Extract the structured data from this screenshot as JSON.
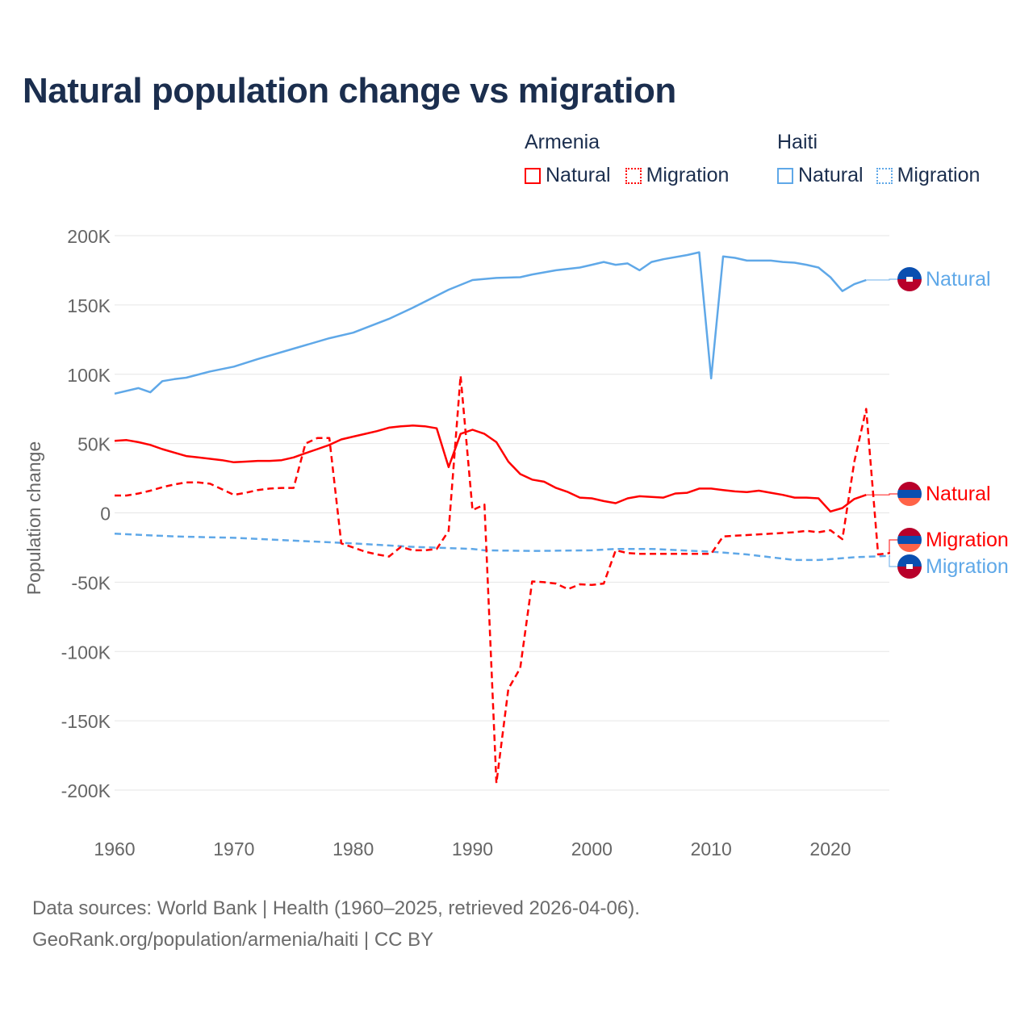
{
  "title": "Natural population change vs migration",
  "legend": [
    {
      "group": "Armenia",
      "items": [
        {
          "label": "Natural",
          "color": "#ff0000",
          "style": "solid"
        },
        {
          "label": "Migration",
          "color": "#ff0000",
          "style": "dotted"
        }
      ]
    },
    {
      "group": "Haiti",
      "items": [
        {
          "label": "Natural",
          "color": "#5fa8e8",
          "style": "solid"
        },
        {
          "label": "Migration",
          "color": "#5fa8e8",
          "style": "dotted"
        }
      ]
    }
  ],
  "footer": {
    "line1": "Data sources: World Bank | Health (1960–2025, retrieved 2026-04-06).",
    "line2": "GeoRank.org/population/armenia/haiti | CC BY"
  },
  "chart_data": {
    "type": "line",
    "title": "Natural population change vs migration",
    "xlabel": "",
    "ylabel": "Population change",
    "xlim": [
      1960,
      2025
    ],
    "ylim": [
      -200000,
      200000
    ],
    "xticks": [
      1960,
      1970,
      1980,
      1990,
      2000,
      2010,
      2020
    ],
    "xtick_labels": [
      "1960",
      "1970",
      "1980",
      "1990",
      "2000",
      "2010",
      "2020"
    ],
    "yticks": [
      200000,
      150000,
      100000,
      50000,
      0,
      -50000,
      -100000,
      -150000,
      -200000
    ],
    "ytick_labels": [
      "200K",
      "150K",
      "100K",
      "50K",
      "0",
      "-50K",
      "-100K",
      "-150K",
      "-200K"
    ],
    "grid": true,
    "legend_position": "top-right",
    "series": [
      {
        "name": "Haiti Natural",
        "end_label": "Natural",
        "country": "Haiti",
        "color": "#5fa8e8",
        "dashed": false,
        "x": [
          1960,
          1962,
          1963,
          1964,
          1965,
          1966,
          1968,
          1970,
          1972,
          1975,
          1978,
          1980,
          1983,
          1985,
          1988,
          1990,
          1992,
          1994,
          1995,
          1997,
          1999,
          2000,
          2001,
          2002,
          2003,
          2004,
          2005,
          2006,
          2008,
          2009,
          2010,
          2011,
          2012,
          2013,
          2015,
          2016,
          2017,
          2018,
          2019,
          2020,
          2021,
          2022,
          2023
        ],
        "y": [
          86000,
          90000,
          87000,
          95000,
          96500,
          97500,
          102000,
          105500,
          111000,
          118500,
          126000,
          130000,
          140000,
          148000,
          161000,
          168000,
          169500,
          170000,
          172000,
          175000,
          177000,
          179000,
          181000,
          179000,
          180000,
          175000,
          181000,
          183000,
          186000,
          188000,
          97000,
          185000,
          184000,
          182000,
          182000,
          181000,
          180500,
          179000,
          177000,
          170000,
          160000,
          165000,
          168000
        ]
      },
      {
        "name": "Haiti Migration",
        "end_label": "Migration",
        "country": "Haiti",
        "color": "#5fa8e8",
        "dashed": true,
        "x": [
          1960,
          1965,
          1970,
          1975,
          1980,
          1985,
          1990,
          1991,
          1995,
          2000,
          2002,
          2005,
          2010,
          2013,
          2015,
          2017,
          2019,
          2022,
          2025
        ],
        "y": [
          -15000,
          -17000,
          -18000,
          -20000,
          -22000,
          -24500,
          -26000,
          -27000,
          -27500,
          -27000,
          -26000,
          -26000,
          -28000,
          -30000,
          -32000,
          -34000,
          -34000,
          -32000,
          -31000
        ]
      },
      {
        "name": "Armenia Natural",
        "end_label": "Natural",
        "country": "Armenia",
        "color": "#ff0000",
        "dashed": false,
        "x": [
          1960,
          1961,
          1962,
          1963,
          1964,
          1965,
          1966,
          1967,
          1968,
          1969,
          1970,
          1971,
          1972,
          1973,
          1974,
          1975,
          1976,
          1977,
          1978,
          1979,
          1980,
          1981,
          1982,
          1983,
          1984,
          1985,
          1986,
          1987,
          1988,
          1989,
          1990,
          1991,
          1992,
          1993,
          1994,
          1995,
          1996,
          1997,
          1998,
          1999,
          2000,
          2001,
          2002,
          2003,
          2004,
          2005,
          2006,
          2007,
          2008,
          2009,
          2010,
          2011,
          2012,
          2013,
          2014,
          2015,
          2016,
          2017,
          2018,
          2019,
          2020,
          2021,
          2022,
          2023
        ],
        "y": [
          52000,
          52500,
          51000,
          49000,
          46000,
          43500,
          41000,
          40000,
          39000,
          38000,
          36500,
          37000,
          37500,
          37500,
          38000,
          40000,
          43000,
          46000,
          49000,
          53000,
          55000,
          57000,
          59000,
          61500,
          62500,
          63000,
          62500,
          61000,
          33000,
          57000,
          60000,
          57000,
          51000,
          37000,
          28000,
          24000,
          22500,
          18000,
          15000,
          11000,
          10500,
          8500,
          7000,
          10500,
          12000,
          11500,
          11000,
          14000,
          14500,
          17500,
          17500,
          16500,
          15500,
          15000,
          16000,
          14500,
          13000,
          11000,
          11000,
          10500,
          1000,
          3500,
          10000,
          13000
        ]
      },
      {
        "name": "Armenia Migration",
        "end_label": "Migration",
        "country": "Armenia",
        "color": "#ff0000",
        "dashed": true,
        "x": [
          1960,
          1961,
          1962,
          1963,
          1964,
          1965,
          1966,
          1967,
          1968,
          1969,
          1970,
          1971,
          1972,
          1973,
          1974,
          1975,
          1976,
          1977,
          1978,
          1979,
          1980,
          1981,
          1982,
          1983,
          1984,
          1985,
          1986,
          1987,
          1988,
          1989,
          1990,
          1991,
          1992,
          1993,
          1994,
          1995,
          1996,
          1997,
          1998,
          1999,
          2000,
          2001,
          2002,
          2003,
          2004,
          2005,
          2006,
          2007,
          2008,
          2009,
          2010,
          2011,
          2012,
          2013,
          2014,
          2015,
          2016,
          2017,
          2018,
          2019,
          2020,
          2021,
          2022,
          2023,
          2024,
          2025
        ],
        "y": [
          12500,
          12500,
          14000,
          16000,
          18500,
          20500,
          22000,
          22000,
          21000,
          17000,
          13000,
          14500,
          16500,
          17500,
          18000,
          18000,
          50000,
          54000,
          54000,
          -22000,
          -25000,
          -28000,
          -30000,
          -31500,
          -24500,
          -27000,
          -27000,
          -26000,
          -13000,
          99000,
          2000,
          6000,
          -195000,
          -127000,
          -112000,
          -49500,
          -50000,
          -51000,
          -55000,
          -51500,
          -52000,
          -51000,
          -27000,
          -29000,
          -29500,
          -29500,
          -29500,
          -29500,
          -29500,
          -29500,
          -29500,
          -17000,
          -16500,
          -16000,
          -15500,
          -15000,
          -14500,
          -14000,
          -13000,
          -14000,
          -12500,
          -19000,
          37000,
          75000,
          -30000,
          -29000
        ]
      }
    ]
  }
}
